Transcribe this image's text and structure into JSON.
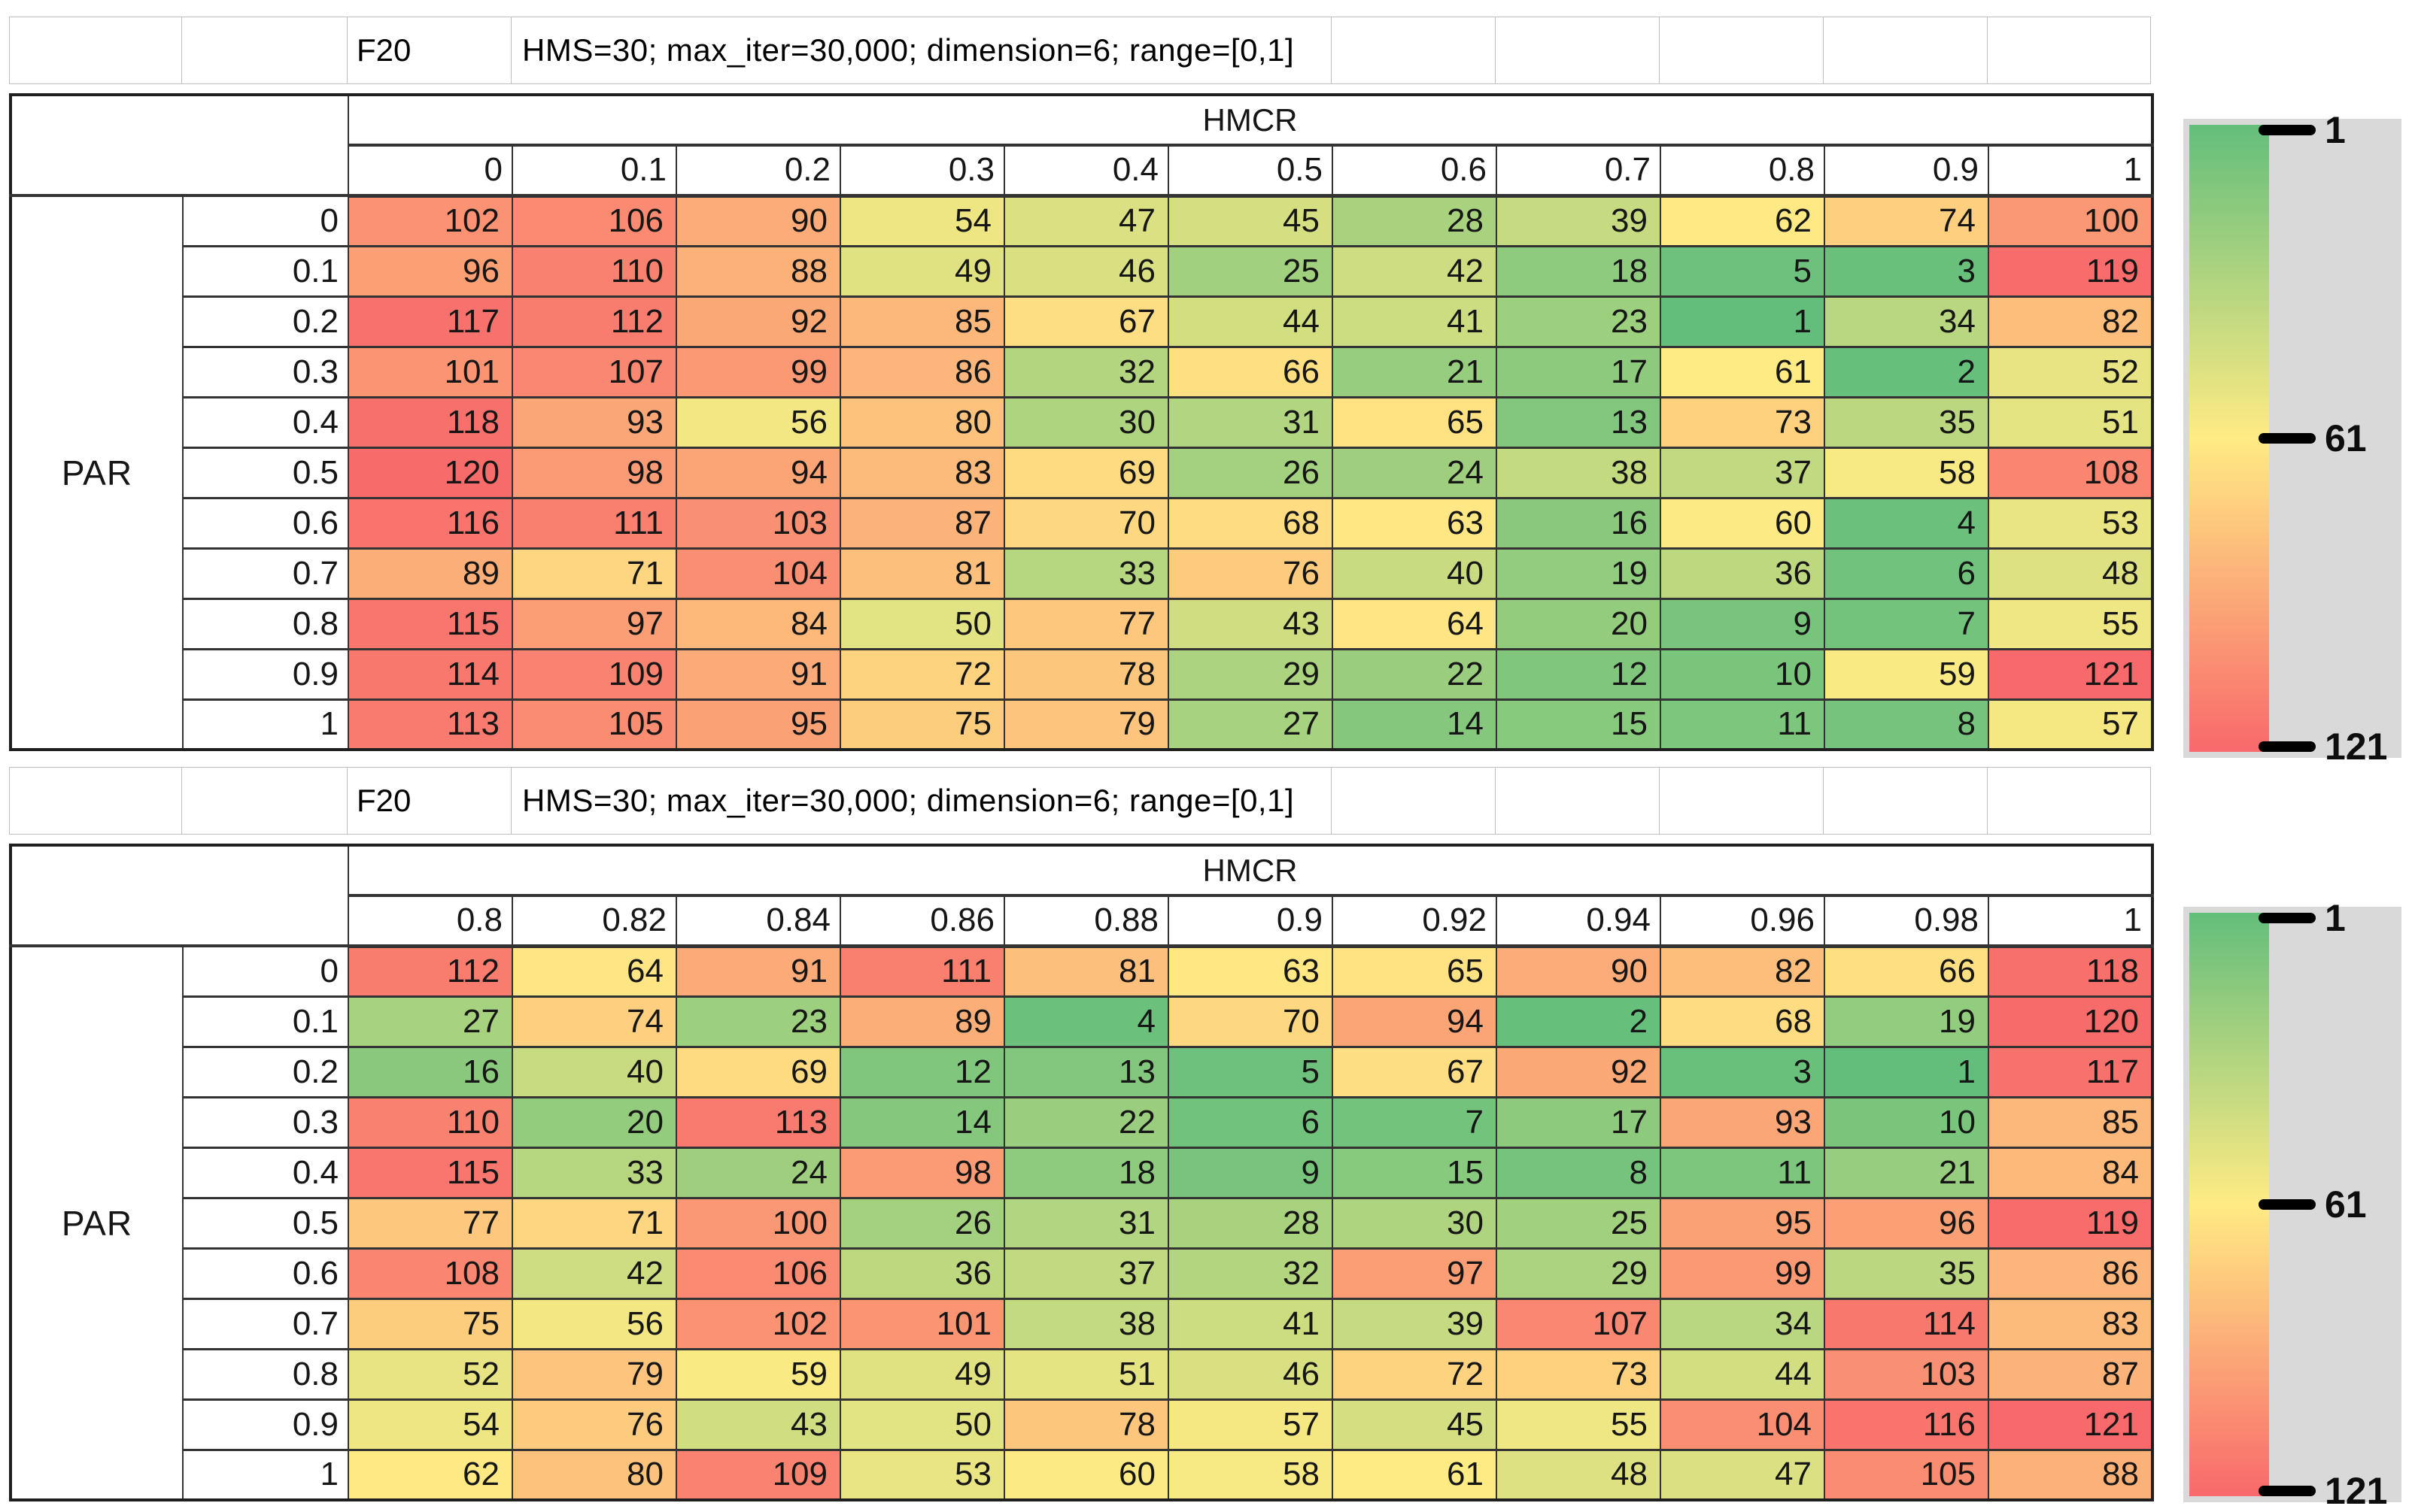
{
  "color_scale": {
    "min": 1,
    "mid": 61,
    "max": 121,
    "min_color": "#63BE7B",
    "mid_color": "#FFEB84",
    "max_color": "#F8696B"
  },
  "legend": {
    "ticks": [
      "1",
      "61",
      "121"
    ],
    "panel_bg": "#D9D9D9",
    "bar_top_color": "#63BE7B",
    "bar_mid_color": "#FFEB84",
    "bar_bottom_color": "#F8696B"
  },
  "chart_data": [
    {
      "type": "heatmap",
      "title": "F20",
      "subtitle": "HMS=30; max_iter=30,000; dimension=6; range=[0,1]",
      "x_label": "HMCR",
      "y_label": "PAR",
      "x": [
        "0",
        "0.1",
        "0.2",
        "0.3",
        "0.4",
        "0.5",
        "0.6",
        "0.7",
        "0.8",
        "0.9",
        "1"
      ],
      "y": [
        "0",
        "0.1",
        "0.2",
        "0.3",
        "0.4",
        "0.5",
        "0.6",
        "0.7",
        "0.8",
        "0.9",
        "1"
      ],
      "values": [
        [
          102,
          106,
          90,
          54,
          47,
          45,
          28,
          39,
          62,
          74,
          100
        ],
        [
          96,
          110,
          88,
          49,
          46,
          25,
          42,
          18,
          5,
          3,
          119
        ],
        [
          117,
          112,
          92,
          85,
          67,
          44,
          41,
          23,
          1,
          34,
          82
        ],
        [
          101,
          107,
          99,
          86,
          32,
          66,
          21,
          17,
          61,
          2,
          52
        ],
        [
          118,
          93,
          56,
          80,
          30,
          31,
          65,
          13,
          73,
          35,
          51
        ],
        [
          120,
          98,
          94,
          83,
          69,
          26,
          24,
          38,
          37,
          58,
          108
        ],
        [
          116,
          111,
          103,
          87,
          70,
          68,
          63,
          16,
          60,
          4,
          53
        ],
        [
          89,
          71,
          104,
          81,
          33,
          76,
          40,
          19,
          36,
          6,
          48
        ],
        [
          115,
          97,
          84,
          50,
          77,
          43,
          64,
          20,
          9,
          7,
          55
        ],
        [
          114,
          109,
          91,
          72,
          78,
          29,
          22,
          12,
          10,
          59,
          121
        ],
        [
          113,
          105,
          95,
          75,
          79,
          27,
          14,
          15,
          11,
          8,
          57
        ]
      ],
      "scale": {
        "min": 1,
        "mid": 61,
        "max": 121
      }
    },
    {
      "type": "heatmap",
      "title": "F20",
      "subtitle": "HMS=30; max_iter=30,000; dimension=6; range=[0,1]",
      "x_label": "HMCR",
      "y_label": "PAR",
      "x": [
        "0.8",
        "0.82",
        "0.84",
        "0.86",
        "0.88",
        "0.9",
        "0.92",
        "0.94",
        "0.96",
        "0.98",
        "1"
      ],
      "y": [
        "0",
        "0.1",
        "0.2",
        "0.3",
        "0.4",
        "0.5",
        "0.6",
        "0.7",
        "0.8",
        "0.9",
        "1"
      ],
      "values": [
        [
          112,
          64,
          91,
          111,
          81,
          63,
          65,
          90,
          82,
          66,
          118
        ],
        [
          27,
          74,
          23,
          89,
          4,
          70,
          94,
          2,
          68,
          19,
          120
        ],
        [
          16,
          40,
          69,
          12,
          13,
          5,
          67,
          92,
          3,
          1,
          117
        ],
        [
          110,
          20,
          113,
          14,
          22,
          6,
          7,
          17,
          93,
          10,
          85
        ],
        [
          115,
          33,
          24,
          98,
          18,
          9,
          15,
          8,
          11,
          21,
          84
        ],
        [
          77,
          71,
          100,
          26,
          31,
          28,
          30,
          25,
          95,
          96,
          119
        ],
        [
          108,
          42,
          106,
          36,
          37,
          32,
          97,
          29,
          99,
          35,
          86
        ],
        [
          75,
          56,
          102,
          101,
          38,
          41,
          39,
          107,
          34,
          114,
          83
        ],
        [
          52,
          79,
          59,
          49,
          51,
          46,
          72,
          73,
          44,
          103,
          87
        ],
        [
          54,
          76,
          43,
          50,
          78,
          57,
          45,
          55,
          104,
          116,
          121
        ],
        [
          62,
          80,
          109,
          53,
          60,
          58,
          61,
          48,
          47,
          105,
          88
        ]
      ],
      "scale": {
        "min": 1,
        "mid": 61,
        "max": 121
      }
    }
  ]
}
